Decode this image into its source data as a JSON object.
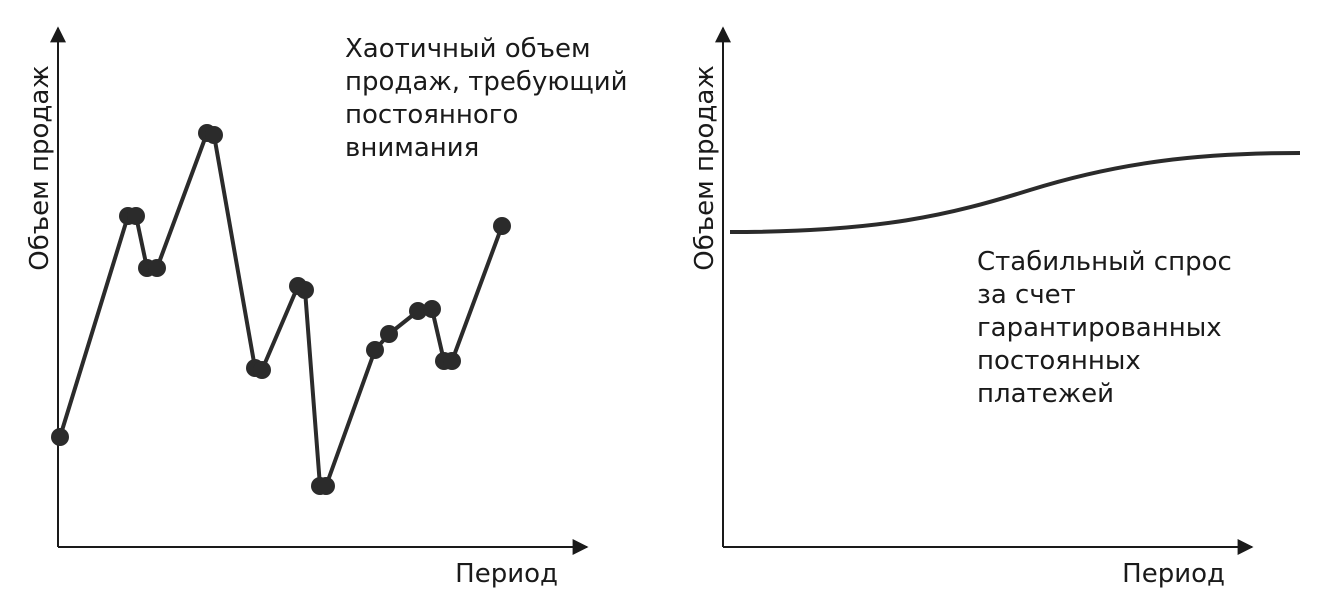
{
  "panels": [
    {
      "y_label": "Объем продаж",
      "x_label": "Период",
      "annotation": [
        "Хаотичный объем",
        "продаж, требующий",
        "постоянного",
        "внимания"
      ]
    },
    {
      "y_label": "Объем продаж",
      "x_label": "Период",
      "annotation": [
        "Стабильный спрос",
        "за счет",
        "гарантированных",
        "постоянных",
        "платежей"
      ]
    }
  ]
}
